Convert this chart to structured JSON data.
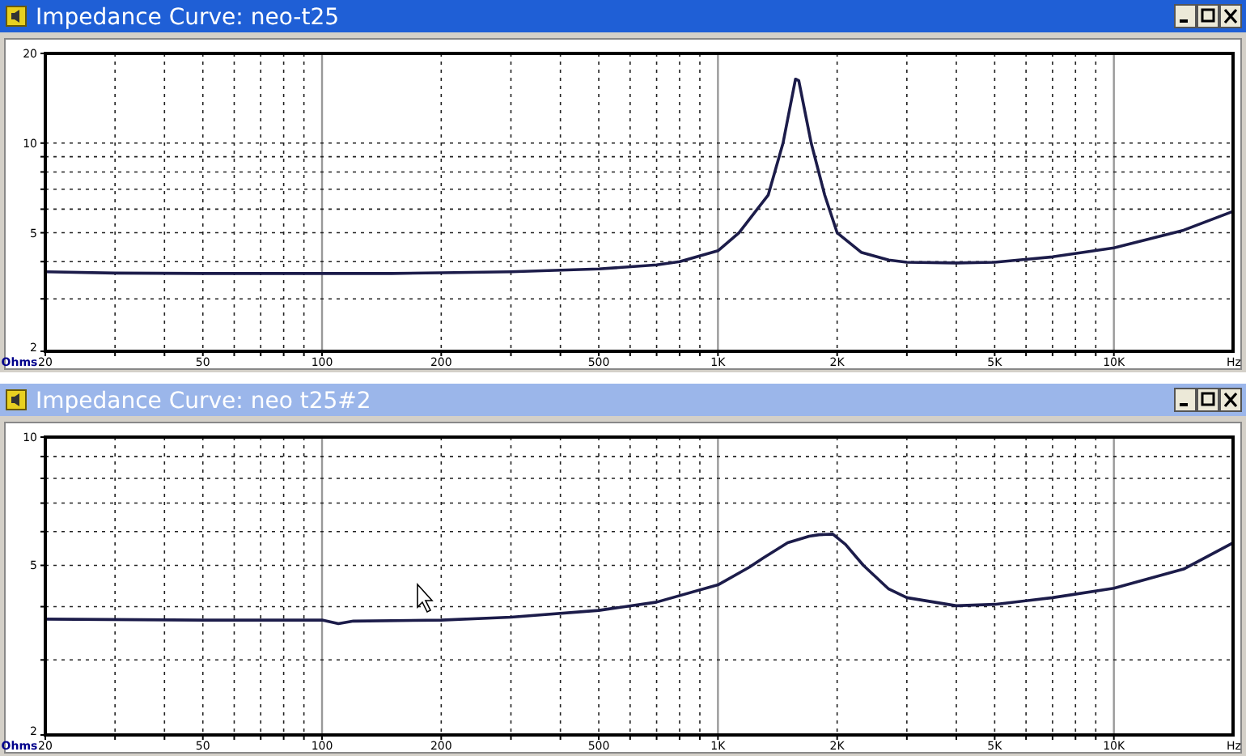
{
  "chart_data": [
    {
      "type": "line",
      "title": "Impedance Curve: neo-t25",
      "xlabel": "Hz",
      "ylabel": "Ohms",
      "log": "xy",
      "grid": true,
      "xlim": [
        20,
        20000
      ],
      "ylim": [
        2,
        20
      ],
      "xticks": [
        20,
        {
          "value": 30,
          "label": null
        },
        {
          "value": 40,
          "label": null
        },
        50,
        {
          "value": 60,
          "label": null
        },
        {
          "value": 70,
          "label": null
        },
        {
          "value": 80,
          "label": null
        },
        {
          "value": 90,
          "label": null
        },
        100,
        200,
        {
          "value": 300,
          "label": null
        },
        {
          "value": 400,
          "label": null
        },
        500,
        {
          "value": 600,
          "label": null
        },
        {
          "value": 700,
          "label": null
        },
        {
          "value": 800,
          "label": null
        },
        {
          "value": 900,
          "label": null
        },
        {
          "value": 1000,
          "label": "1K"
        },
        {
          "value": 2000,
          "label": "2K"
        },
        {
          "value": 3000,
          "label": null
        },
        {
          "value": 4000,
          "label": null
        },
        {
          "value": 5000,
          "label": "5K"
        },
        {
          "value": 6000,
          "label": null
        },
        {
          "value": 7000,
          "label": null
        },
        {
          "value": 8000,
          "label": null
        },
        {
          "value": 9000,
          "label": null
        },
        {
          "value": 10000,
          "label": "10K"
        }
      ],
      "yticks": [
        2,
        {
          "value": 3,
          "label": null
        },
        {
          "value": 4,
          "label": null
        },
        5,
        {
          "value": 6,
          "label": null
        },
        {
          "value": 7,
          "label": null
        },
        {
          "value": 8,
          "label": null
        },
        {
          "value": 9,
          "label": null
        },
        10,
        20
      ],
      "series": [
        {
          "color": "#1c1c4a",
          "x": [
            20,
            30,
            50,
            100,
            150,
            200,
            300,
            500,
            700,
            800,
            1000,
            1130,
            1340,
            1460,
            1570,
            1600,
            1720,
            1860,
            2000,
            2300,
            2700,
            3000,
            4000,
            5000,
            7000,
            10000,
            15000,
            20000
          ],
          "values": [
            3.7,
            3.66,
            3.65,
            3.65,
            3.65,
            3.67,
            3.7,
            3.78,
            3.9,
            4.0,
            4.35,
            5.0,
            6.7,
            10,
            16.4,
            16.2,
            10,
            6.7,
            5.0,
            4.3,
            4.05,
            3.98,
            3.96,
            3.98,
            4.15,
            4.45,
            5.1,
            5.9
          ]
        }
      ]
    },
    {
      "type": "line",
      "title": "Impedance Curve: neo t25#2",
      "xlabel": "Hz",
      "ylabel": "Ohms",
      "log": "xy",
      "grid": true,
      "xlim": [
        20,
        20000
      ],
      "ylim": [
        2,
        10
      ],
      "xticks": [
        20,
        {
          "value": 30,
          "label": null
        },
        {
          "value": 40,
          "label": null
        },
        50,
        {
          "value": 60,
          "label": null
        },
        {
          "value": 70,
          "label": null
        },
        {
          "value": 80,
          "label": null
        },
        {
          "value": 90,
          "label": null
        },
        100,
        200,
        {
          "value": 300,
          "label": null
        },
        {
          "value": 400,
          "label": null
        },
        500,
        {
          "value": 600,
          "label": null
        },
        {
          "value": 700,
          "label": null
        },
        {
          "value": 800,
          "label": null
        },
        {
          "value": 900,
          "label": null
        },
        {
          "value": 1000,
          "label": "1K"
        },
        {
          "value": 2000,
          "label": "2K"
        },
        {
          "value": 3000,
          "label": null
        },
        {
          "value": 4000,
          "label": null
        },
        {
          "value": 5000,
          "label": "5K"
        },
        {
          "value": 6000,
          "label": null
        },
        {
          "value": 7000,
          "label": null
        },
        {
          "value": 8000,
          "label": null
        },
        {
          "value": 9000,
          "label": null
        },
        {
          "value": 10000,
          "label": "10K"
        }
      ],
      "yticks": [
        2,
        {
          "value": 3,
          "label": null
        },
        {
          "value": 4,
          "label": null
        },
        5,
        {
          "value": 6,
          "label": null
        },
        {
          "value": 7,
          "label": null
        },
        {
          "value": 8,
          "label": null
        },
        {
          "value": 9,
          "label": null
        },
        10
      ],
      "series": [
        {
          "color": "#1c1c4a",
          "x": [
            20,
            50,
            100,
            110,
            120,
            200,
            300,
            500,
            700,
            1000,
            1200,
            1300,
            1500,
            1700,
            1800,
            1950,
            2100,
            2330,
            2700,
            3000,
            4000,
            5000,
            7000,
            10000,
            15000,
            20000
          ],
          "values": [
            3.74,
            3.72,
            3.72,
            3.65,
            3.7,
            3.72,
            3.78,
            3.92,
            4.1,
            4.5,
            4.95,
            5.2,
            5.65,
            5.85,
            5.9,
            5.92,
            5.6,
            5.0,
            4.4,
            4.2,
            4.02,
            4.05,
            4.2,
            4.42,
            4.9,
            5.65
          ]
        }
      ]
    }
  ]
}
